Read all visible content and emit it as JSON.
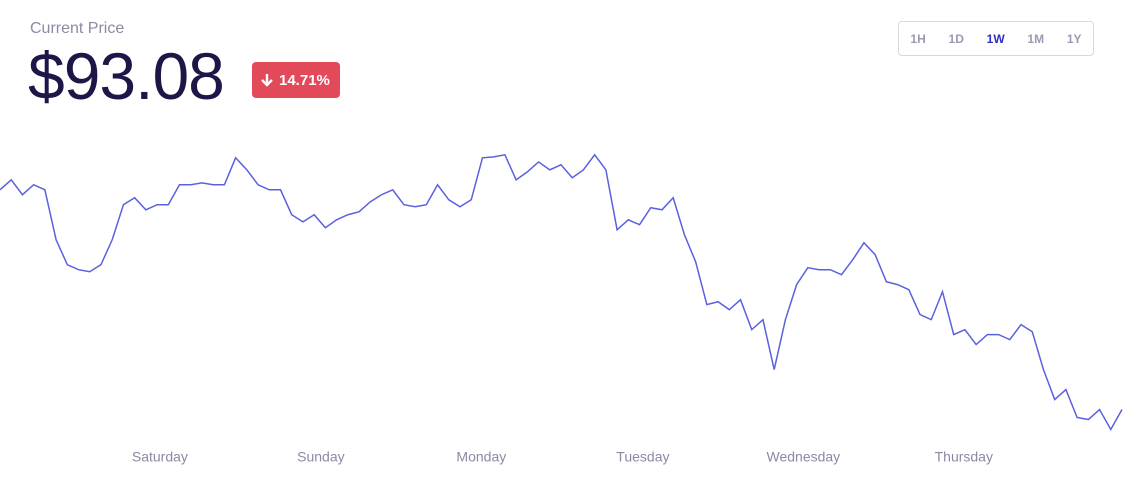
{
  "header": {
    "label": "Current Price",
    "price": "$93.08",
    "change": "14.71%",
    "ranges": [
      "1H",
      "1D",
      "1W",
      "1M",
      "1Y"
    ],
    "active_range": "1W"
  },
  "chart_data": {
    "type": "line",
    "color": "#5a61e0",
    "values": [
      109.14,
      109.87,
      108.78,
      109.51,
      109.14,
      105.49,
      103.67,
      103.3,
      103.15,
      103.67,
      105.49,
      108.05,
      108.56,
      107.68,
      108.05,
      108.05,
      109.51,
      109.51,
      109.65,
      109.51,
      109.51,
      111.48,
      110.6,
      109.51,
      109.14,
      109.14,
      107.32,
      106.8,
      107.32,
      106.37,
      106.95,
      107.32,
      107.53,
      108.26,
      108.78,
      109.14,
      108.05,
      107.9,
      108.05,
      109.51,
      108.41,
      107.9,
      108.41,
      111.48,
      111.55,
      111.7,
      109.87,
      110.45,
      111.18,
      110.6,
      110.97,
      110.02,
      110.6,
      111.7,
      110.6,
      106.22,
      106.95,
      106.59,
      107.83,
      107.68,
      108.56,
      105.86,
      103.88,
      100.75,
      100.96,
      100.38,
      101.11,
      98.92,
      99.65,
      96.0,
      99.65,
      102.21,
      103.45,
      103.3,
      103.3,
      102.94,
      104.03,
      105.27,
      104.4,
      102.42,
      102.21,
      101.84,
      100.02,
      99.65,
      101.69,
      98.56,
      98.92,
      97.83,
      98.56,
      98.56,
      98.19,
      99.29,
      98.77,
      96.0,
      93.81,
      94.54,
      92.5,
      92.35,
      93.08,
      91.62,
      93.08
    ],
    "xlim": [
      0,
      100
    ],
    "ylim": [
      91,
      113
    ],
    "xticks": [
      {
        "value": 14.25,
        "label": "Saturday"
      },
      {
        "value": 28.6,
        "label": "Sunday"
      },
      {
        "value": 42.9,
        "label": "Monday"
      },
      {
        "value": 57.3,
        "label": "Tuesday"
      },
      {
        "value": 71.6,
        "label": "Wednesday"
      },
      {
        "value": 85.9,
        "label": "Thursday"
      }
    ]
  }
}
